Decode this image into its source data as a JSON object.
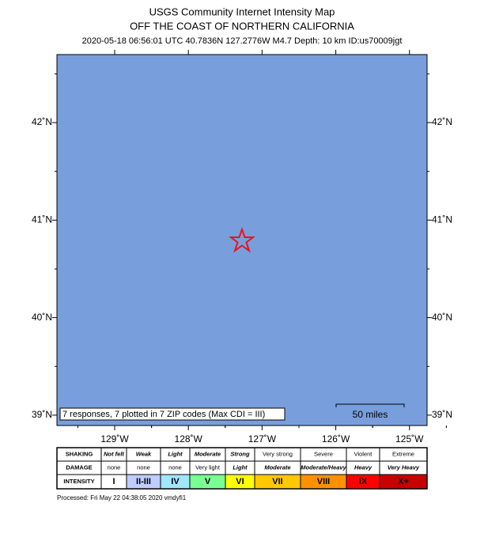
{
  "header": {
    "title": "USGS Community Internet Intensity Map",
    "region": "OFF THE COAST OF NORTHERN CALIFORNIA",
    "details": "2020-05-18 06:56:01 UTC 40.7836N 127.2776W M4.7 Depth: 10 km ID:us70009jgt"
  },
  "map": {
    "lat_labels": [
      "42˚N",
      "41˚N",
      "40˚N",
      "39˚N"
    ],
    "lon_labels": [
      "129˚W",
      "128˚W",
      "127˚W",
      "126˚W",
      "125˚W"
    ],
    "scale_bar": "50 miles",
    "responses": "7 responses, 7 plotted in 7 ZIP codes (Max CDI = III)"
  },
  "legend": {
    "row_labels": [
      "SHAKING",
      "DAMAGE",
      "INTENSITY"
    ],
    "columns": [
      {
        "shaking": "Not felt",
        "damage": "none",
        "intensity": "I",
        "color": "#ffffff"
      },
      {
        "shaking": "Weak",
        "damage": "none",
        "intensity": "II-III",
        "color": "#bfccff"
      },
      {
        "shaking": "Light",
        "damage": "none",
        "intensity": "IV",
        "color": "#a0e6ff"
      },
      {
        "shaking": "Moderate",
        "damage": "Very light",
        "intensity": "V",
        "color": "#7aff93"
      },
      {
        "shaking": "Strong",
        "damage": "Light",
        "intensity": "VI",
        "color": "#ffff00"
      },
      {
        "shaking": "Very strong",
        "damage": "Moderate",
        "intensity": "VII",
        "color": "#ffc800"
      },
      {
        "shaking": "Severe",
        "damage": "Moderate/Heavy",
        "intensity": "VIII",
        "color": "#ff9100"
      },
      {
        "shaking": "Violent",
        "damage": "Heavy",
        "intensity": "IX",
        "color": "#ff0000"
      },
      {
        "shaking": "Extreme",
        "damage": "Very Heavy",
        "intensity": "X+",
        "color": "#c80000"
      }
    ]
  },
  "footer": "Processed: Fri May 22 04:38:05 2020 vmdyfi1"
}
